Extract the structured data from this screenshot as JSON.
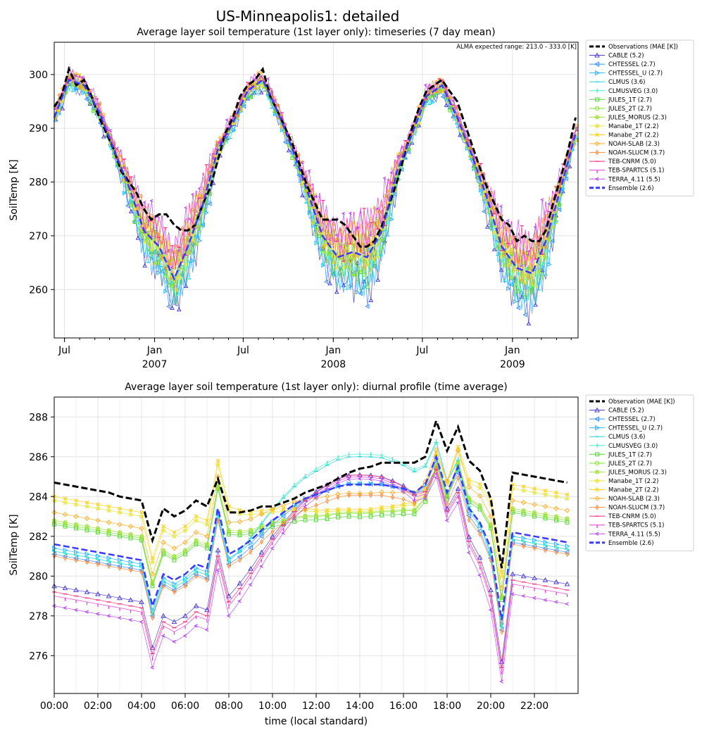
{
  "figure": {
    "title": "US-Minneapolis1: detailed"
  },
  "colors": {
    "observations": "#000000",
    "ensemble": "#3a3aff",
    "CABLE": "#4b3fd6",
    "CHTESSEL": "#3b8dff",
    "CHTESSEL_U": "#20b8ff",
    "CLMUS": "#22d6d6",
    "CLMUSVEG": "#3ef0c8",
    "JULES_1T": "#52d436",
    "JULES_2T": "#7be02a",
    "JULES_MORUS": "#9fe23c",
    "Manabe_1T": "#e8e53a",
    "Manabe_2T": "#ffd21a",
    "NOAH-SLAB": "#ffb02a",
    "NOAH-SLUCM": "#ff8a3a",
    "TEB-CNRM": "#ff2a7a",
    "TEB-SPARTCS": "#e23ad2",
    "TERRA_4.11": "#b84df0"
  },
  "chart_data": [
    {
      "type": "line",
      "title": "Average layer soil temperature (1st layer only): timeseries (7 day mean)",
      "ylabel": "SoilTemp [K]",
      "xlabel": "",
      "annotation": "ALMA expected range: 213.0 - 333.0 [K]",
      "ylim": [
        251,
        306
      ],
      "xlim": [
        "2006-06-10",
        "2009-05-15"
      ],
      "yticks": [
        260,
        270,
        280,
        290,
        300
      ],
      "xticks": [
        {
          "date": "2006-07-01",
          "label": "Jul",
          "year": ""
        },
        {
          "date": "2007-01-01",
          "label": "Jan",
          "year": "2007"
        },
        {
          "date": "2007-07-01",
          "label": "Jul",
          "year": ""
        },
        {
          "date": "2008-01-01",
          "label": "Jan",
          "year": "2008"
        },
        {
          "date": "2008-07-01",
          "label": "Jul",
          "year": ""
        },
        {
          "date": "2009-01-01",
          "label": "Jan",
          "year": "2009"
        }
      ],
      "grid": true,
      "legend_position": "outside-right",
      "legend": [
        {
          "name": "Observations (MAE [K])",
          "key": "observations",
          "marker": "none",
          "dash": "dash",
          "width": 3
        },
        {
          "name": "CABLE (5.2)",
          "key": "CABLE",
          "marker": "triangle-up"
        },
        {
          "name": "CHTESSEL (2.7)",
          "key": "CHTESSEL",
          "marker": "triangle-left"
        },
        {
          "name": "CHTESSEL_U (2.7)",
          "key": "CHTESSEL_U",
          "marker": "triangle-right"
        },
        {
          "name": "CLMUS (3.6)",
          "key": "CLMUS",
          "marker": "hline"
        },
        {
          "name": "CLMUSVEG (3.0)",
          "key": "CLMUSVEG",
          "marker": "vline"
        },
        {
          "name": "JULES_1T (2.7)",
          "key": "JULES_1T",
          "marker": "square"
        },
        {
          "name": "JULES_2T (2.7)",
          "key": "JULES_2T",
          "marker": "octagon"
        },
        {
          "name": "JULES_MORUS (2.3)",
          "key": "JULES_MORUS",
          "marker": "hexagon"
        },
        {
          "name": "Manabe_1T (2.2)",
          "key": "Manabe_1T",
          "marker": "star"
        },
        {
          "name": "Manabe_2T (2.2)",
          "key": "Manabe_2T",
          "marker": "x"
        },
        {
          "name": "NOAH-SLAB (2.3)",
          "key": "NOAH-SLAB",
          "marker": "diamond"
        },
        {
          "name": "NOAH-SLUCM (3.7)",
          "key": "NOAH-SLUCM",
          "marker": "thin-diamond"
        },
        {
          "name": "TEB-CNRM (5.0)",
          "key": "TEB-CNRM",
          "marker": "hline"
        },
        {
          "name": "TEB-SPARTCS (5.1)",
          "key": "TEB-SPARTCS",
          "marker": "tick"
        },
        {
          "name": "TERRA_4.11 (5.5)",
          "key": "TERRA_4.11",
          "marker": "caret-left"
        },
        {
          "name": "Ensemble (2.6)",
          "key": "ensemble",
          "marker": "none",
          "dash": "dash",
          "width": 3
        }
      ],
      "observations": {
        "dates": [
          "2006-06-10",
          "2006-06-25",
          "2006-07-10",
          "2006-07-25",
          "2006-08-10",
          "2006-08-25",
          "2006-09-10",
          "2006-09-25",
          "2006-10-10",
          "2006-10-25",
          "2006-11-10",
          "2006-11-25",
          "2006-12-10",
          "2006-12-25",
          "2007-01-10",
          "2007-01-25",
          "2007-02-10",
          "2007-02-25",
          "2007-03-10",
          "2007-03-25",
          "2007-04-10",
          "2007-04-25",
          "2007-05-10",
          "2007-05-25",
          "2007-06-10",
          "2007-06-25",
          "2007-07-10",
          "2007-07-25",
          "2007-08-10",
          "2007-08-25",
          "2007-09-10",
          "2007-09-25",
          "2007-10-10",
          "2007-10-25",
          "2007-11-10",
          "2007-11-25",
          "2007-12-10",
          "2007-12-25",
          "2008-01-10",
          "2008-01-25",
          "2008-02-10",
          "2008-02-25",
          "2008-03-10",
          "2008-03-25",
          "2008-04-10",
          "2008-04-25",
          "2008-05-10",
          "2008-05-25",
          "2008-06-10",
          "2008-06-25",
          "2008-07-10",
          "2008-07-25",
          "2008-08-10",
          "2008-08-25",
          "2008-09-10",
          "2008-09-25",
          "2008-10-10",
          "2008-10-25",
          "2008-11-10",
          "2008-11-25",
          "2008-12-10",
          "2008-12-25",
          "2009-01-10",
          "2009-01-25",
          "2009-02-10",
          "2009-02-25",
          "2009-03-10",
          "2009-03-25",
          "2009-04-10",
          "2009-04-25",
          "2009-05-10"
        ],
        "values": [
          294,
          296,
          301,
          298,
          299,
          296,
          292,
          289,
          286,
          282,
          280,
          278,
          275,
          273,
          274,
          274,
          272,
          271,
          271,
          272,
          276,
          279,
          284,
          289,
          292,
          296,
          298,
          299,
          301,
          296,
          293,
          290,
          287,
          283,
          279,
          276,
          273,
          273,
          273,
          272,
          270,
          268,
          268,
          269,
          272,
          276,
          280,
          285,
          290,
          294,
          297,
          298,
          299,
          297,
          295,
          291,
          287,
          283,
          279,
          276,
          273,
          272,
          269,
          270,
          269,
          269,
          271,
          276,
          281,
          286,
          292
        ]
      },
      "ensemble": {
        "dates": [
          "2006-06-10",
          "2006-07-10",
          "2006-08-10",
          "2006-09-10",
          "2006-10-10",
          "2006-11-10",
          "2006-12-10",
          "2007-01-10",
          "2007-02-10",
          "2007-03-10",
          "2007-04-10",
          "2007-05-10",
          "2007-06-10",
          "2007-07-10",
          "2007-08-10",
          "2007-09-10",
          "2007-10-10",
          "2007-11-10",
          "2007-12-10",
          "2008-01-10",
          "2008-02-10",
          "2008-03-10",
          "2008-04-10",
          "2008-05-10",
          "2008-06-10",
          "2008-07-10",
          "2008-08-10",
          "2008-09-10",
          "2008-10-10",
          "2008-11-10",
          "2008-12-10",
          "2009-01-10",
          "2009-02-10",
          "2009-03-10",
          "2009-04-10",
          "2009-05-10"
        ],
        "values": [
          292,
          299,
          298,
          293,
          286,
          279,
          271,
          268,
          262,
          268,
          276,
          286,
          291,
          297,
          299,
          293,
          286,
          278,
          270,
          266,
          267,
          266,
          271,
          282,
          289,
          296,
          298,
          292,
          285,
          277,
          268,
          264,
          263,
          269,
          279,
          289
        ]
      }
    },
    {
      "type": "line",
      "title": "Average layer soil temperature (1st layer only): diurnal profile (time average)",
      "xlabel": "time (local standard)",
      "ylabel": "SoilTemp [K]",
      "ylim": [
        274.1,
        289.0
      ],
      "xlim": [
        0,
        24
      ],
      "yticks": [
        276,
        278,
        280,
        282,
        284,
        286,
        288
      ],
      "xticks": [
        0,
        2,
        4,
        6,
        8,
        10,
        12,
        14,
        16,
        18,
        20,
        22
      ],
      "xticklabels": [
        "00:00",
        "02:00",
        "04:00",
        "06:00",
        "08:00",
        "10:00",
        "12:00",
        "14:00",
        "16:00",
        "18:00",
        "20:00",
        "22:00"
      ],
      "grid": true,
      "legend_position": "outside-right",
      "legend": [
        {
          "name": "Observation (MAE [K])",
          "key": "observations",
          "marker": "none",
          "dash": "dash",
          "width": 3
        },
        {
          "name": "CABLE (5.2)",
          "key": "CABLE",
          "marker": "triangle-up"
        },
        {
          "name": "CHTESSEL (2.7)",
          "key": "CHTESSEL",
          "marker": "triangle-left"
        },
        {
          "name": "CHTESSEL_U (2.7)",
          "key": "CHTESSEL_U",
          "marker": "triangle-right"
        },
        {
          "name": "CLMUS (3.6)",
          "key": "CLMUS",
          "marker": "hline"
        },
        {
          "name": "CLMUSVEG (3.0)",
          "key": "CLMUSVEG",
          "marker": "vline"
        },
        {
          "name": "JULES_1T (2.7)",
          "key": "JULES_1T",
          "marker": "square"
        },
        {
          "name": "JULES_2T (2.7)",
          "key": "JULES_2T",
          "marker": "octagon"
        },
        {
          "name": "JULES_MORUS (2.3)",
          "key": "JULES_MORUS",
          "marker": "hexagon"
        },
        {
          "name": "Manabe_1T (2.2)",
          "key": "Manabe_1T",
          "marker": "star"
        },
        {
          "name": "Manabe_2T (2.2)",
          "key": "Manabe_2T",
          "marker": "x"
        },
        {
          "name": "NOAH-SLAB (2.3)",
          "key": "NOAH-SLAB",
          "marker": "diamond"
        },
        {
          "name": "NOAH-SLUCM (3.7)",
          "key": "NOAH-SLUCM",
          "marker": "thin-diamond"
        },
        {
          "name": "TEB-CNRM (5.0)",
          "key": "TEB-CNRM",
          "marker": "hline"
        },
        {
          "name": "TEB-SPARTCS (5.1)",
          "key": "TEB-SPARTCS",
          "marker": "tick"
        },
        {
          "name": "TERRA_4.11 (5.5)",
          "key": "TERRA_4.11",
          "marker": "caret-left"
        },
        {
          "name": "Ensemble (2.6)",
          "key": "ensemble",
          "marker": "none",
          "dash": "dash",
          "width": 3
        }
      ],
      "hours": [
        0,
        0.5,
        1,
        1.5,
        2,
        2.5,
        3,
        3.5,
        4,
        4.5,
        5,
        5.5,
        6,
        6.5,
        7,
        7.5,
        8,
        8.5,
        9,
        9.5,
        10,
        10.5,
        11,
        11.5,
        12,
        12.5,
        13,
        13.5,
        14,
        14.5,
        15,
        15.5,
        16,
        16.5,
        17,
        17.5,
        18,
        18.5,
        19,
        19.5,
        20,
        20.5,
        21,
        21.5,
        22,
        22.5,
        23,
        23.5
      ],
      "series": [
        {
          "key": "observations",
          "values": [
            284.7,
            284.6,
            284.5,
            284.4,
            284.3,
            284.2,
            284.0,
            283.9,
            283.8,
            281.8,
            283.4,
            283.0,
            283.3,
            283.8,
            283.5,
            284.9,
            283.2,
            283.2,
            283.3,
            283.5,
            283.5,
            283.7,
            283.9,
            284.2,
            284.4,
            284.6,
            284.9,
            285.2,
            285.4,
            285.5,
            285.7,
            285.7,
            285.7,
            285.7,
            286.0,
            287.8,
            286.3,
            287.5,
            285.8,
            285.3,
            283.9,
            280.4,
            285.2,
            285.1,
            285.0,
            284.9,
            284.8,
            284.7
          ]
        },
        {
          "key": "ensemble",
          "values": [
            281.6,
            281.5,
            281.4,
            281.3,
            281.2,
            281.1,
            281.0,
            280.9,
            280.8,
            278.5,
            280.1,
            279.8,
            280.1,
            280.6,
            280.4,
            283.4,
            281.1,
            281.4,
            281.8,
            282.3,
            282.8,
            283.2,
            283.6,
            283.9,
            284.1,
            284.3,
            284.5,
            284.6,
            284.6,
            284.6,
            284.6,
            284.5,
            284.4,
            284.2,
            284.6,
            286.0,
            284.2,
            285.5,
            283.4,
            282.7,
            281.4,
            277.8,
            282.2,
            282.1,
            282.0,
            281.9,
            281.8,
            281.7
          ]
        }
      ]
    }
  ]
}
